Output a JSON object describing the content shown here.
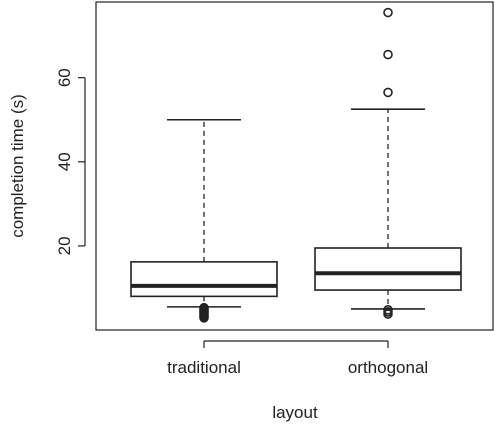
{
  "chart_data": {
    "type": "boxplot",
    "title": "",
    "xlabel": "layout",
    "ylabel": "completion time (s)",
    "ylim": [
      0,
      78
    ],
    "yticks": [
      20,
      40,
      60
    ],
    "grid": false,
    "categories": [
      "traditional",
      "orthogonal"
    ],
    "boxes": [
      {
        "category": "traditional",
        "whisker_low": 5.5,
        "q1": 8,
        "median": 10.5,
        "q3": 16.2,
        "whisker_high": 50,
        "outliers": [
          2.9,
          3.2,
          3.5,
          3.8,
          4.1,
          4.4,
          4.7,
          5.0,
          5.3
        ]
      },
      {
        "category": "orthogonal",
        "whisker_low": 5,
        "q1": 9.5,
        "median": 13.5,
        "q3": 19.5,
        "whisker_high": 52.5,
        "outliers": [
          3.8,
          4.3,
          4.8,
          56.5,
          65.5,
          75.5
        ]
      }
    ],
    "colors": {
      "stroke": "#222222",
      "background": "#ffffff"
    }
  }
}
